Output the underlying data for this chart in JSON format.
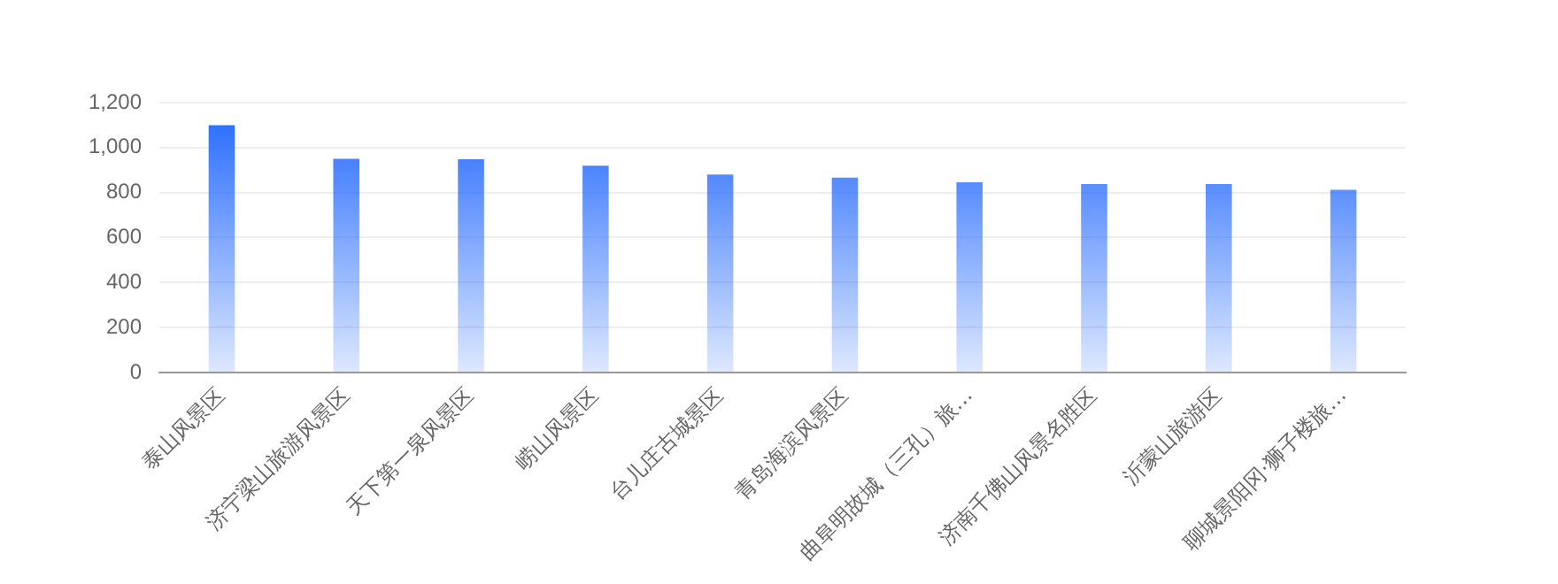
{
  "chart_data": {
    "type": "bar",
    "categories": [
      "泰山风景区",
      "济宁梁山旅游风景区",
      "天下第一泉风景区",
      "崂山风景区",
      "台儿庄古城景区",
      "青岛海滨风景区",
      "曲阜明故城（三孔）旅…",
      "济南千佛山风景名胜区",
      "沂蒙山旅游区",
      "聊城景阳冈·狮子楼旅…"
    ],
    "values": [
      1100,
      950,
      948,
      920,
      880,
      867,
      846,
      838,
      838,
      812
    ],
    "color": "#1f66ff",
    "ylim": [
      0,
      1200
    ],
    "yticks": [
      0,
      200,
      400,
      600,
      800,
      {
        "value": 1000,
        "label": "1,000"
      },
      {
        "value": 1200,
        "label": "1,200"
      }
    ],
    "grid": "y",
    "legend": false
  }
}
